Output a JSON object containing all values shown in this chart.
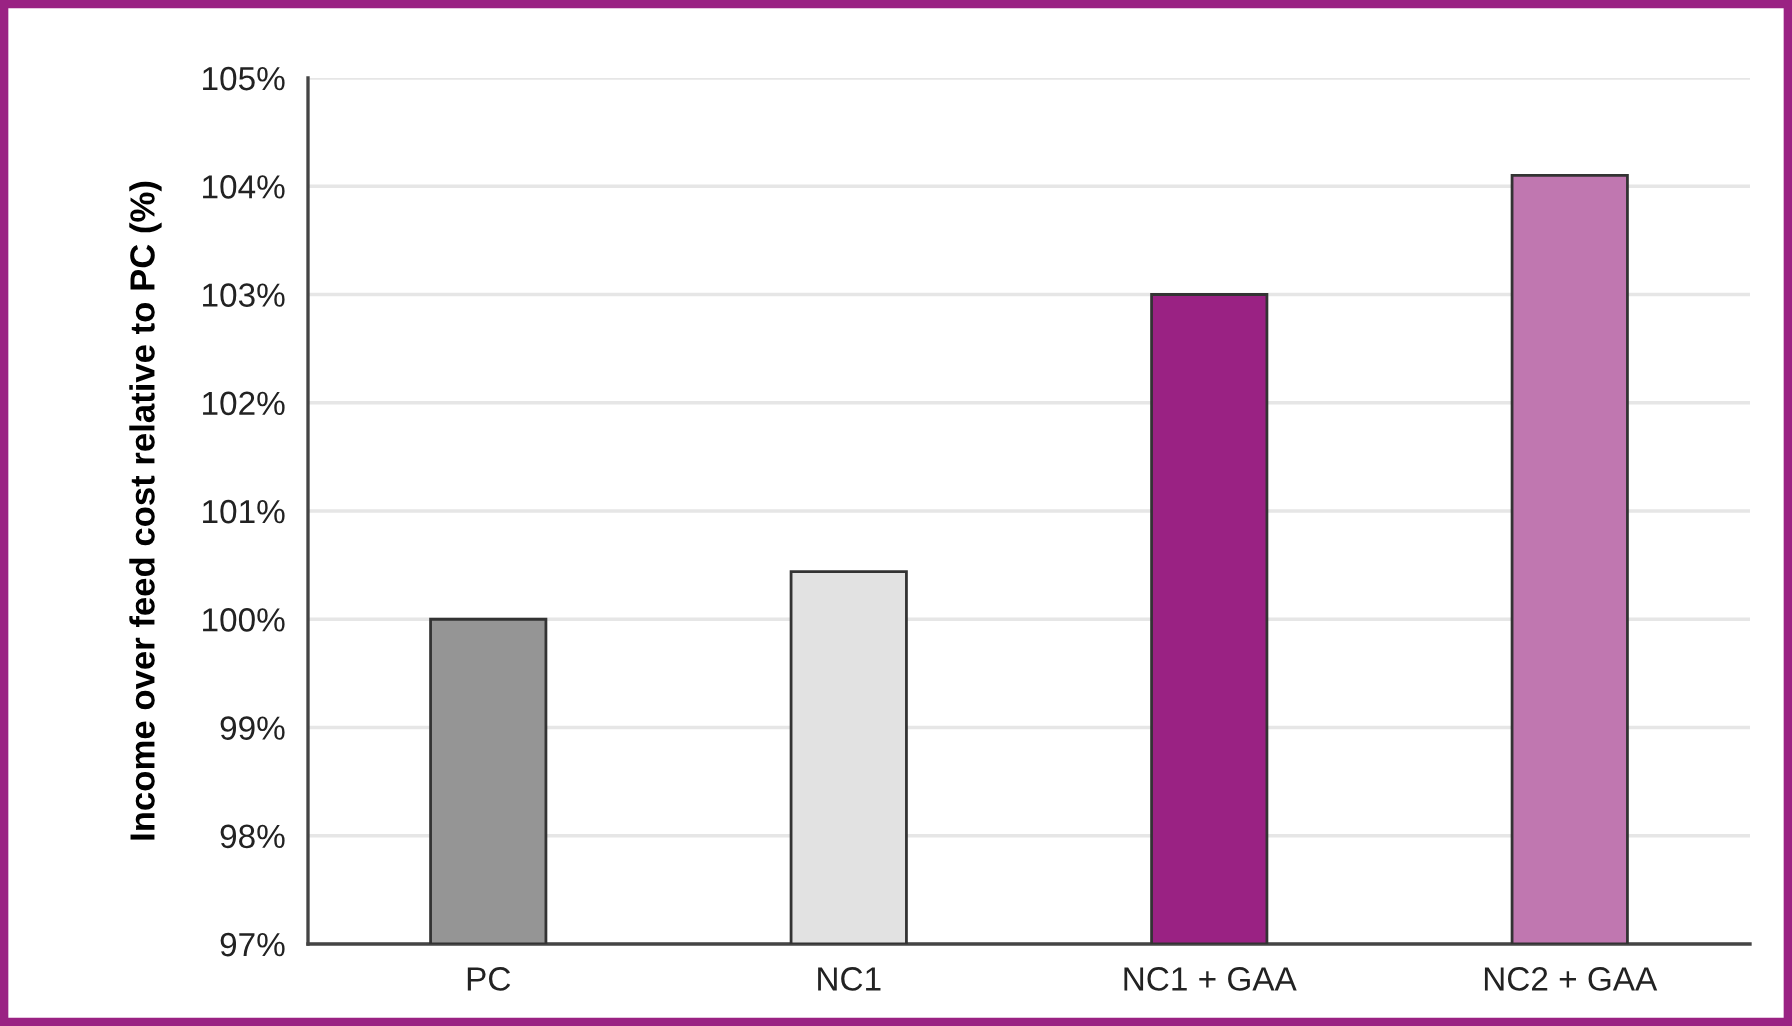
{
  "chart_data": {
    "type": "bar",
    "ylabel": "Income over feed cost relative to PC (%)",
    "categories": [
      "PC",
      "NC1",
      "NC1 + GAA",
      "NC2 + GAA"
    ],
    "values": [
      100.0,
      100.44,
      103.0,
      104.1
    ],
    "colors": [
      "#959595",
      "#e2e2e2",
      "#9a2283",
      "#c077b0"
    ],
    "ylim": [
      97,
      105
    ],
    "yticks": [
      {
        "value": 97,
        "label": "97%"
      },
      {
        "value": 98,
        "label": "98%"
      },
      {
        "value": 99,
        "label": "99%"
      },
      {
        "value": 100,
        "label": "100%"
      },
      {
        "value": 101,
        "label": "101%"
      },
      {
        "value": 102,
        "label": "102%"
      },
      {
        "value": 103,
        "label": "103%"
      },
      {
        "value": 104,
        "label": "104%"
      },
      {
        "value": 105,
        "label": "105%"
      }
    ],
    "grid": "y"
  }
}
